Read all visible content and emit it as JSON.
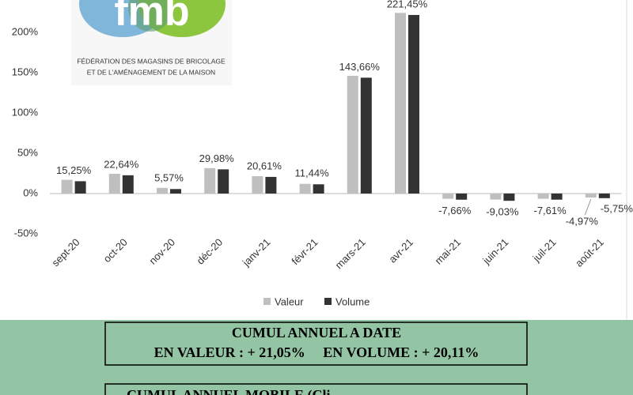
{
  "logo": {
    "mark": "fmb",
    "lines": [
      "FÉDÉRATION DES MAGASINS DE BRICOLAGE",
      "ET DE L'AMÉNAGEMENT DE LA MAISON"
    ]
  },
  "chart_data": {
    "type": "bar",
    "categories": [
      "sept-20",
      "oct-20",
      "nov-20",
      "déc-20",
      "janv-21",
      "févr-21",
      "mars-21",
      "avr-21",
      "mai-21",
      "juin-21",
      "juil-21",
      "août-21"
    ],
    "series": [
      {
        "name": "Valeur",
        "color": "#bfbfbf",
        "values": [
          17,
          24.5,
          7,
          31.5,
          21.5,
          12,
          146,
          224,
          -6.5,
          -7.5,
          -6.5,
          -4.97
        ],
        "value_labels": [
          null,
          null,
          null,
          null,
          null,
          null,
          null,
          null,
          null,
          null,
          null,
          "-4,97%"
        ]
      },
      {
        "name": "Volume",
        "color": "#333333",
        "values": [
          15.25,
          22.64,
          5.57,
          29.98,
          20.61,
          11.44,
          143.66,
          221.45,
          -7.66,
          -9.03,
          -7.61,
          -5.75
        ],
        "value_labels": [
          "15,25%",
          "22,64%",
          "5,57%",
          "29,98%",
          "20,61%",
          "11,44%",
          "143,66%",
          "221,45%",
          "-7,66%",
          "-9,03%",
          "-7,61%",
          "-5,75%"
        ]
      }
    ],
    "ylim": [
      -50,
      240
    ],
    "yticks": [
      {
        "value": -50,
        "label": "-50%"
      },
      {
        "value": 0,
        "label": "0%"
      },
      {
        "value": 50,
        "label": "50%"
      },
      {
        "value": 100,
        "label": "100%"
      },
      {
        "value": 150,
        "label": "150%"
      },
      {
        "value": 200,
        "label": "200%"
      }
    ],
    "grid": false,
    "legend": "bottom"
  },
  "summary": {
    "title": "CUMUL ANNUEL A DATE",
    "line": "EN VALEUR : + 21,05%     EN VOLUME : + 20,11%",
    "next_title": "CUMUL ANNUEL MOBILE (Cli"
  }
}
